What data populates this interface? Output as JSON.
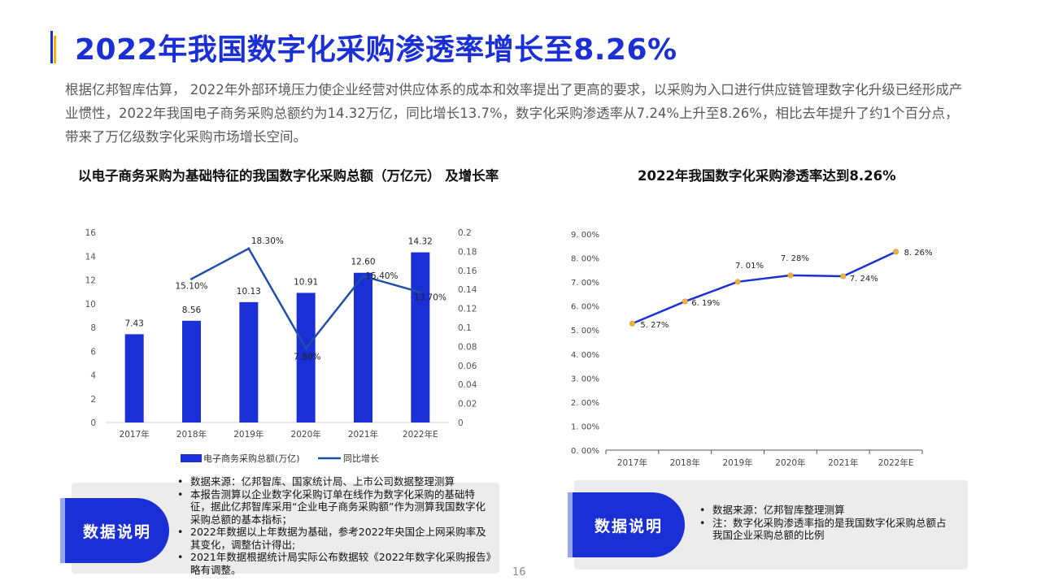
{
  "page": {
    "title": "2022年我国数字化采购渗透率增长至8.26%",
    "intro": "根据亿邦智库估算， 2022年外部环境压力使企业经营对供应体系的成本和效率提出了更高的要求，以采购为入口进行供应链管理数字化升级已经形成产业惯性，2022年我国电子商务采购总额约为14.32万亿，同比增长13.7%，数字化采购渗透率从7.24%上升至8.26%，相比去年提升了约1个百分点，带来了万亿级数字化采购市场增长空间。",
    "page_number": "16"
  },
  "colors": {
    "accent": "#1b2fd6",
    "secondary": "#f3b300",
    "line": "#1f4fa8",
    "marker": "#f0b43a"
  },
  "chart_data": [
    {
      "type": "bar",
      "title": "以电子商务采购为基础特征的我国数字化采购总额（万亿元） 及增长率",
      "categories": [
        "2017年",
        "2018年",
        "2019年",
        "2020年",
        "2021年",
        "2022年E"
      ],
      "ylim": [
        0,
        16
      ],
      "yticks": [
        "0",
        "2",
        "4",
        "6",
        "8",
        "10",
        "12",
        "14",
        "16"
      ],
      "y2lim": [
        0,
        0.2
      ],
      "y2ticks": [
        "0",
        "0.02",
        "0.04",
        "0.06",
        "0.08",
        "0.1",
        "0.12",
        "0.14",
        "0.16",
        "0.18",
        "0.2"
      ],
      "series": [
        {
          "name": "电子商务采购总额(万亿)",
          "type": "bar",
          "values": [
            7.43,
            8.56,
            10.13,
            10.91,
            12.6,
            14.32
          ],
          "labels": [
            "7.43",
            "8.56",
            "10.13",
            "10.91",
            "12.60",
            "14.32"
          ]
        },
        {
          "name": "同比增长",
          "type": "line",
          "axis": "right",
          "values": [
            null,
            0.151,
            0.183,
            0.078,
            0.154,
            0.137
          ],
          "labels": [
            "",
            "15.10%",
            "18.30%",
            "7.80%",
            "15.40%",
            "13.70%"
          ]
        }
      ],
      "legend": "bottom",
      "grid": false
    },
    {
      "type": "line",
      "title": "2022年我国数字化采购渗透率达到8.26%",
      "categories": [
        "2017年",
        "2018年",
        "2019年",
        "2020年",
        "2021年",
        "2022年E"
      ],
      "ylim": [
        0,
        0.09
      ],
      "yticks": [
        "0. 00%",
        "1. 00%",
        "2. 00%",
        "3. 00%",
        "4. 00%",
        "5. 00%",
        "6. 00%",
        "7. 00%",
        "8. 00%",
        "9. 00%"
      ],
      "series": [
        {
          "name": "",
          "values": [
            0.0527,
            0.0619,
            0.0701,
            0.0728,
            0.0724,
            0.0826
          ],
          "labels": [
            "5. 27%",
            "6. 19%",
            "7. 01%",
            "7. 28%",
            "7. 24%",
            "8. 26%"
          ]
        }
      ],
      "grid": false
    }
  ],
  "notes_left": {
    "tab_label": "数据说明",
    "items": [
      "数据来源：亿邦智库、国家统计局、上市公司数据整理测算",
      "本报告测算以企业数字化采购订单在线作为数字化采购的基础特征，据此亿邦智库采用“企业电子商务采购额”作为测算我国数字化采购总额的基本指标；",
      "2022年数据以上年数据为基础，参考2022年央国企上网采购率及其变化，调整估计得出;",
      "2021年数据根据统计局实际公布数据较《2022年数字化采购报告》略有调整。"
    ]
  },
  "notes_right": {
    "tab_label": "数据说明",
    "items": [
      "数据来源：亿邦智库整理测算",
      "注：数字化采购渗透率指的是我国数字化采购总额占我国企业采购总额的比例"
    ]
  }
}
